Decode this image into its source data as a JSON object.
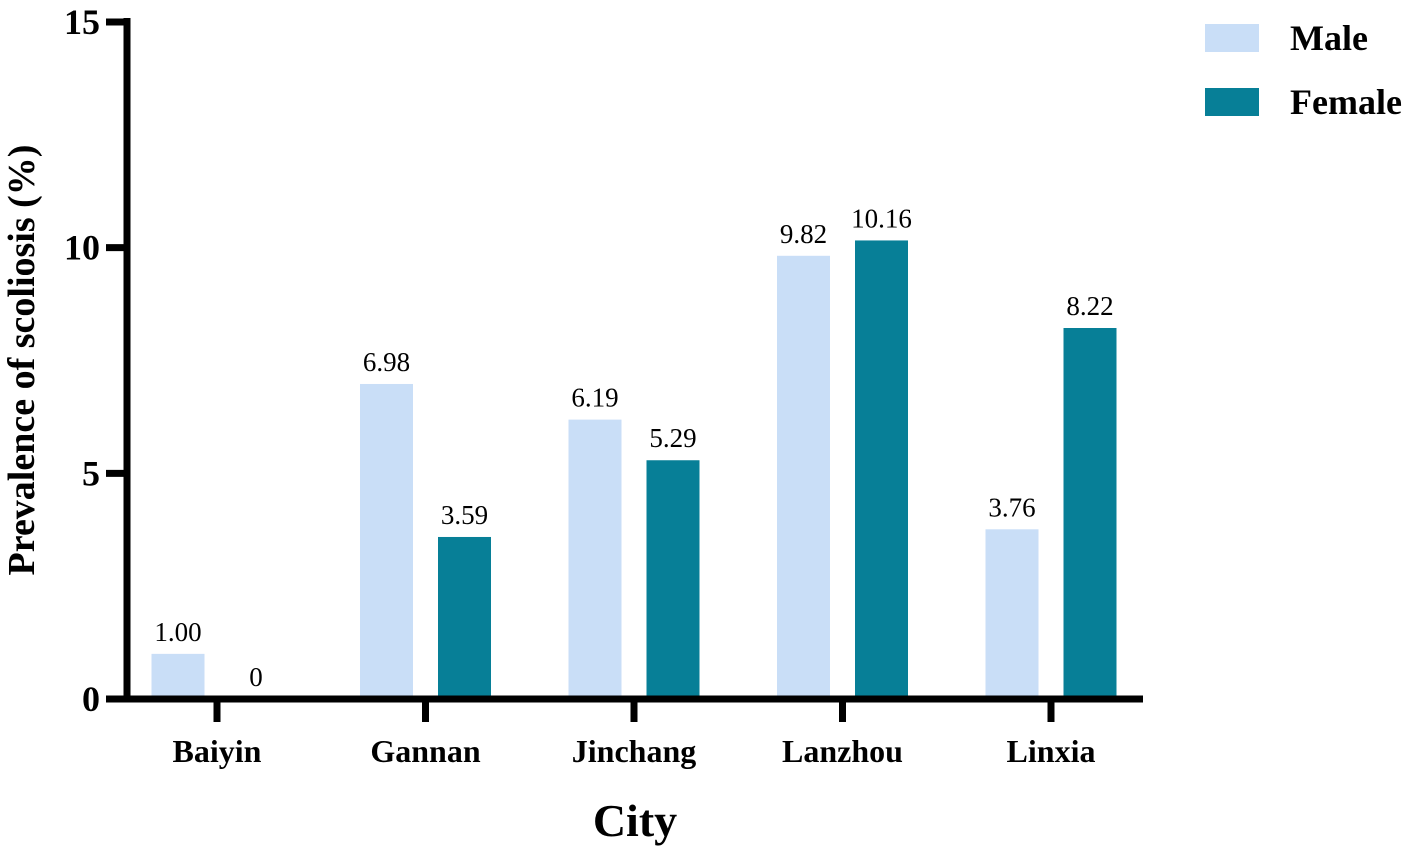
{
  "chart_data": {
    "type": "bar",
    "categories": [
      "Baiyin",
      "Gannan",
      "Jinchang",
      "Lanzhou",
      "Linxia"
    ],
    "series": [
      {
        "name": "Male",
        "values": [
          1.0,
          6.98,
          6.19,
          9.82,
          3.76
        ],
        "labels": [
          "1.00",
          "6.98",
          "6.19",
          "9.82",
          "3.76"
        ],
        "color": "#c9def7"
      },
      {
        "name": "Female",
        "values": [
          0,
          3.59,
          5.29,
          10.16,
          8.22
        ],
        "labels": [
          "0",
          "3.59",
          "5.29",
          "10.16",
          "8.22"
        ],
        "color": "#077f97"
      }
    ],
    "xlabel": "City",
    "ylabel": "Prevalence of scoliosis (%)",
    "ylim": [
      0,
      15
    ],
    "yticks": [
      0,
      5,
      10,
      15
    ],
    "legend_position": "top-right",
    "grid": false
  }
}
